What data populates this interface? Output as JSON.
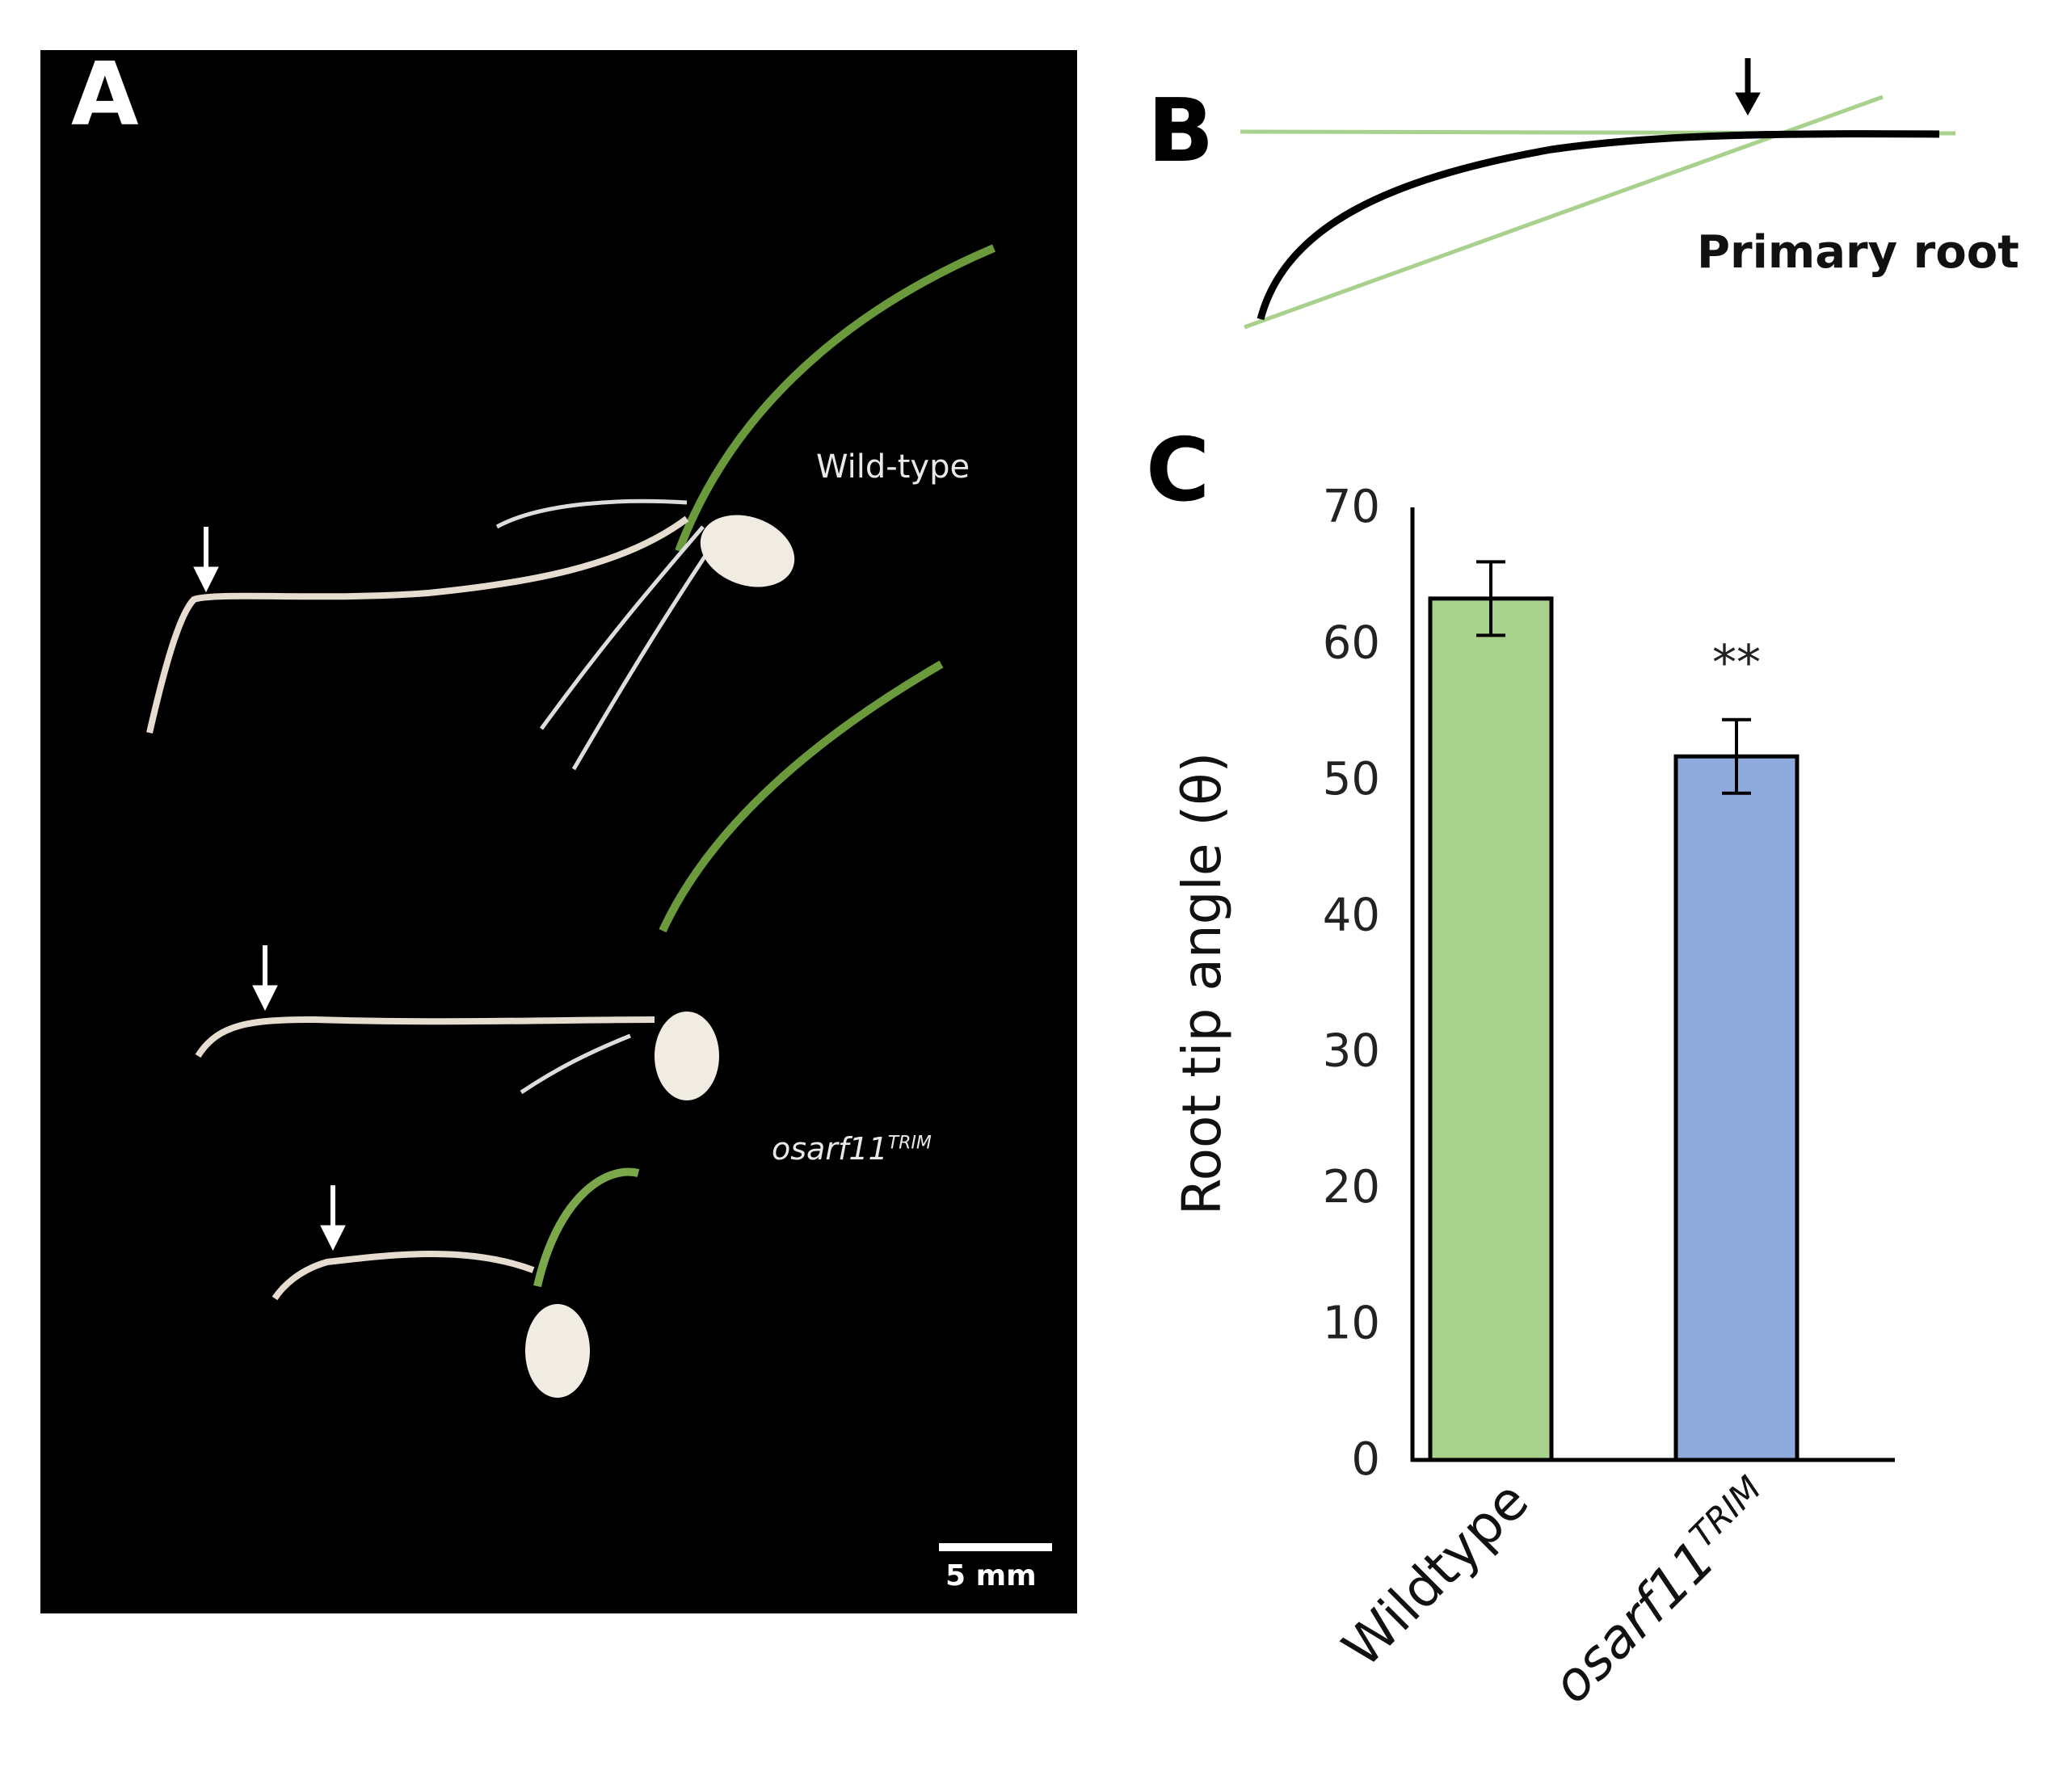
{
  "panels": {
    "a": {
      "letter": "A",
      "label_wildtype": "Wild-type",
      "label_mutant_base": "osarf11",
      "label_mutant_sup": "TRIM",
      "scale": "5 mm"
    },
    "b": {
      "letter": "B",
      "label": "Primary root"
    },
    "c": {
      "letter": "C"
    }
  },
  "colors": {
    "wildtype": "#a9d18e",
    "mutant": "#8faadc",
    "guide_line": "#a9d18e"
  },
  "icons": [
    "down-arrow-icon"
  ],
  "chart_data": {
    "type": "bar",
    "categories": [
      "Wildtype",
      "osarf11TRIM"
    ],
    "category_display": [
      {
        "base": "Wildtype",
        "sup": ""
      },
      {
        "base": "osarf11",
        "sup": "TRIM"
      }
    ],
    "values": [
      63.3,
      51.7
    ],
    "errors": [
      2.7,
      2.7
    ],
    "significance": [
      "",
      "**"
    ],
    "xlabel": "",
    "ylabel": "Root tip angle (θ)",
    "ylim": [
      0,
      70
    ],
    "yticks": [
      0,
      10,
      20,
      30,
      40,
      50,
      60,
      70
    ],
    "grid": false
  }
}
